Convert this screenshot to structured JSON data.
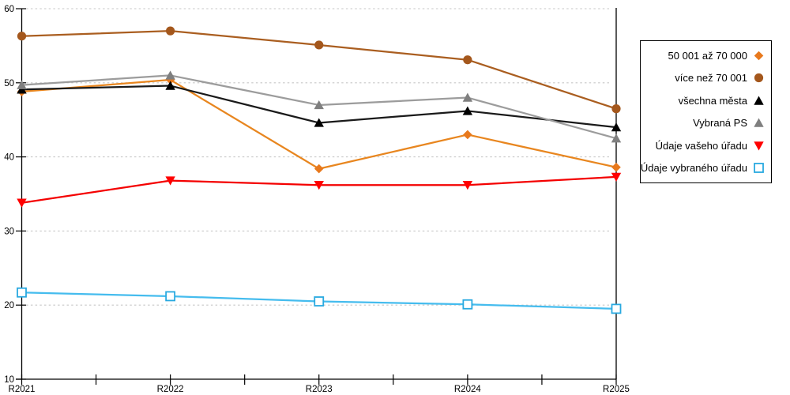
{
  "chart_data": {
    "type": "line",
    "title": "",
    "xlabel": "",
    "ylabel": "",
    "x_labels": [
      "R2021",
      "R2022",
      "R2023",
      "R2024",
      "R2025"
    ],
    "y_axis": {
      "min": 10,
      "max": 60,
      "step": 10,
      "tick_labels": [
        "10",
        "20",
        "30",
        "40",
        "50",
        "60"
      ]
    },
    "grid": {
      "show": true,
      "style": "dashed",
      "color": "#C7C7C7",
      "at_values": [
        20,
        30,
        40,
        50,
        60
      ]
    },
    "legend_position": "right",
    "axis_color": "#000000",
    "series": [
      {
        "name": "50 001 až 70 000",
        "marker": "diamond",
        "marker_color": "#E8791D",
        "line_color": "#E8861F",
        "values": [
          48.8,
          50.4,
          38.4,
          43.0,
          38.6
        ]
      },
      {
        "name": "více než 70 001",
        "marker": "circle",
        "marker_color": "#A4571C",
        "line_color": "#AA5E20",
        "values": [
          56.3,
          57.0,
          55.1,
          53.1,
          46.5
        ]
      },
      {
        "name": "všechna města",
        "marker": "triangle-up",
        "marker_color": "#000000",
        "line_color": "#1A1A1A",
        "values": [
          49.1,
          49.6,
          44.6,
          46.2,
          44.0
        ]
      },
      {
        "name": "Vybraná PS",
        "marker": "triangle-up",
        "marker_color": "#7F7F7F",
        "line_color": "#9C9C9C",
        "values": [
          49.7,
          51.0,
          47.0,
          48.0,
          42.5
        ]
      },
      {
        "name": "Údaje vašeho úřadu",
        "marker": "triangle-down",
        "marker_color": "#FF0000",
        "line_color": "#F40000",
        "values": [
          33.8,
          36.8,
          36.2,
          36.2,
          37.3
        ]
      },
      {
        "name": "Údaje vybraného úřadu",
        "marker": "square-open",
        "marker_color": "#29A9E0",
        "line_color": "#45BCEE",
        "values": [
          21.7,
          21.2,
          20.5,
          20.1,
          19.5
        ]
      }
    ]
  }
}
